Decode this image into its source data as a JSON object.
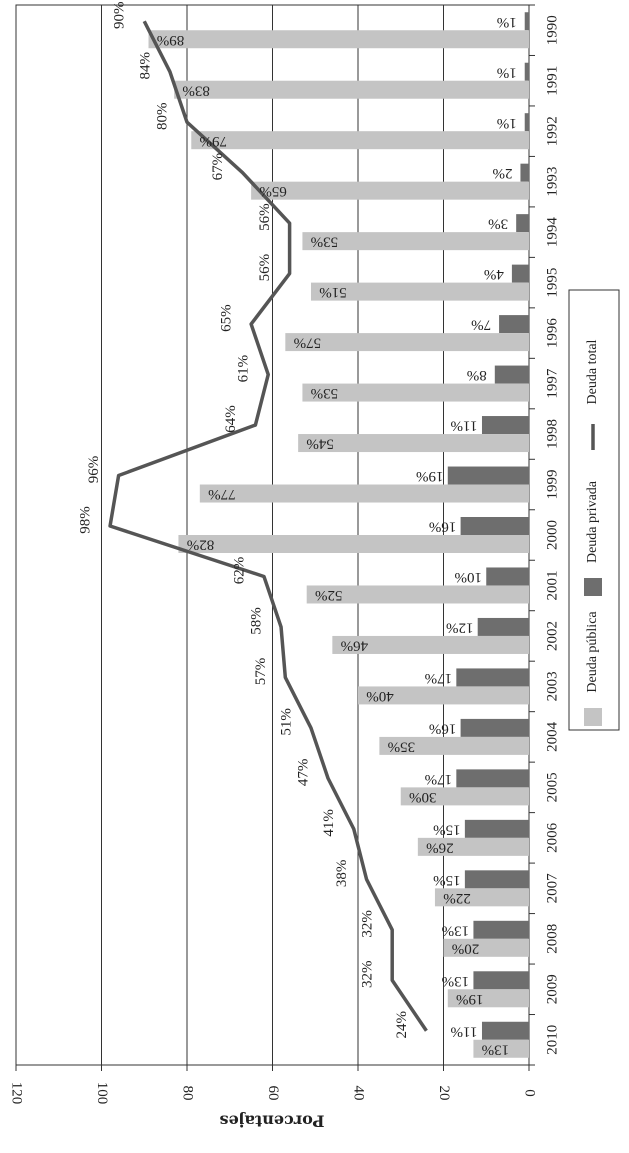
{
  "chart_data": {
    "type": "bar",
    "orientation": "rotated-90-clockwise",
    "ylabel": "Porcentajes",
    "ylim": [
      0,
      120
    ],
    "yticks": [
      0,
      20,
      40,
      60,
      80,
      100,
      120
    ],
    "grid": true,
    "legend_placement": "bottom",
    "categories": [
      "1990",
      "1991",
      "1992",
      "1993",
      "1994",
      "1995",
      "1996",
      "1997",
      "1998",
      "1999",
      "2000",
      "2001",
      "2002",
      "2003",
      "2004",
      "2005",
      "2006",
      "2007",
      "2008",
      "2009",
      "2010"
    ],
    "series": [
      {
        "name": "Deuda pública",
        "kind": "bar",
        "color": "#c4c4c4",
        "values": [
          89,
          83,
          79,
          65,
          53,
          51,
          57,
          53,
          54,
          77,
          82,
          52,
          46,
          40,
          35,
          30,
          26,
          22,
          20,
          19,
          13
        ],
        "labels": [
          "89%",
          "83%",
          "79%",
          "65%",
          "53%",
          "51%",
          "57%",
          "53%",
          "54%",
          "77%",
          "82%",
          "52%",
          "46%",
          "40%",
          "35%",
          "30%",
          "26%",
          "22%",
          "20%",
          "19%",
          "13%"
        ]
      },
      {
        "name": "Deuda privada",
        "kind": "bar",
        "color": "#6e6e6e",
        "values": [
          1,
          1,
          1,
          2,
          3,
          4,
          7,
          8,
          11,
          19,
          16,
          10,
          12,
          17,
          16,
          17,
          15,
          15,
          13,
          13,
          11
        ],
        "labels": [
          "1%",
          "1%",
          "1%",
          "2%",
          "3%",
          "4%",
          "7%",
          "8%",
          "11%",
          "19%",
          "16%",
          "10%",
          "12%",
          "17%",
          "16%",
          "17%",
          "15%",
          "15%",
          "13%",
          "13%",
          "11%"
        ]
      },
      {
        "name": "Deuda total",
        "kind": "line",
        "color": "#555555",
        "values": [
          90,
          84,
          80,
          67,
          56,
          56,
          65,
          61,
          64,
          96,
          98,
          62,
          58,
          57,
          51,
          47,
          41,
          38,
          32,
          32,
          24
        ],
        "labels": [
          "90%",
          "84%",
          "80%",
          "67%",
          "56%",
          "56%",
          "65%",
          "61%",
          "64%",
          "96%",
          "98%",
          "62%",
          "58%",
          "57%",
          "51%",
          "47%",
          "41%",
          "38%",
          "32%",
          "32%",
          "24%"
        ]
      }
    ]
  }
}
